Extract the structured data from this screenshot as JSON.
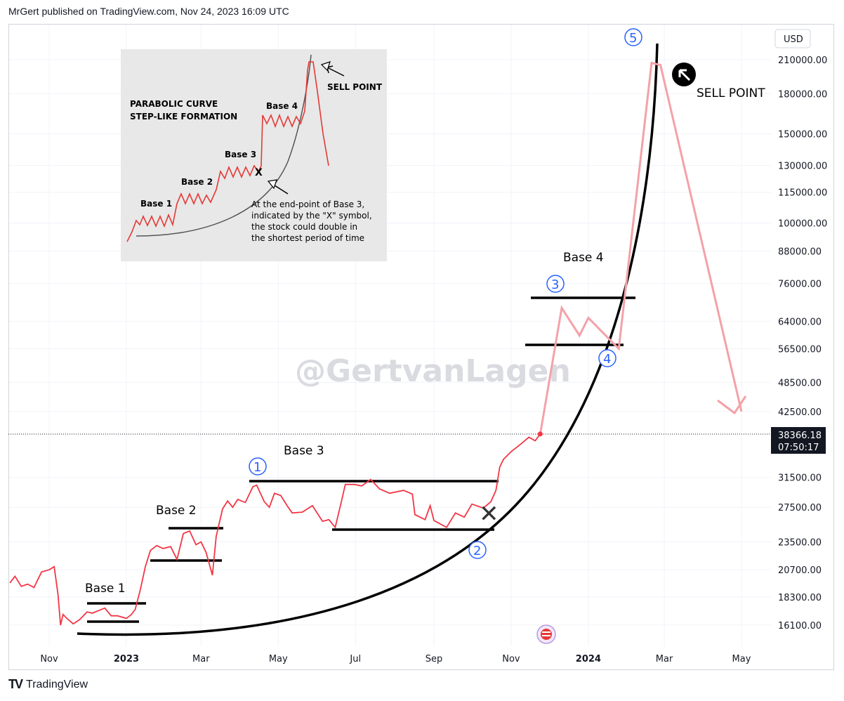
{
  "header": {
    "publisher_line": "MrGert published on TradingView.com, Nov 24, 2023 16:09 UTC"
  },
  "footer": {
    "logo": "TV",
    "brand": "TradingView"
  },
  "watermark": "@GertvanLagen",
  "chart_data": {
    "type": "line",
    "currency": "USD",
    "log_scale": true,
    "y_ticks": [
      "210000.00",
      "180000.00",
      "150000.00",
      "130000.00",
      "115000.00",
      "100000.00",
      "88000.00",
      "76000.00",
      "64000.00",
      "56500.00",
      "48500.00",
      "42500.00",
      "31500.00",
      "27500.00",
      "23500.00",
      "20700.00",
      "18300.00",
      "16100.00"
    ],
    "x_ticks": [
      "Nov",
      "2023",
      "Mar",
      "May",
      "Jul",
      "Sep",
      "Nov",
      "2024",
      "Mar",
      "May"
    ],
    "current_price": {
      "value": "38366.18",
      "countdown": "07:50:17"
    },
    "price_series": {
      "name": "",
      "color": "#f23645",
      "points": [
        [
          "2022-10-01",
          19500
        ],
        [
          "2022-10-05",
          20100
        ],
        [
          "2022-10-10",
          19200
        ],
        [
          "2022-10-15",
          19400
        ],
        [
          "2022-10-20",
          19100
        ],
        [
          "2022-10-26",
          20500
        ],
        [
          "2022-11-01",
          20700
        ],
        [
          "2022-11-05",
          21000
        ],
        [
          "2022-11-08",
          18500
        ],
        [
          "2022-11-10",
          16100
        ],
        [
          "2022-11-12",
          16900
        ],
        [
          "2022-11-15",
          16600
        ],
        [
          "2022-11-20",
          16200
        ],
        [
          "2022-11-25",
          16500
        ],
        [
          "2022-12-01",
          17100
        ],
        [
          "2022-12-05",
          17000
        ],
        [
          "2022-12-10",
          17200
        ],
        [
          "2022-12-15",
          17400
        ],
        [
          "2022-12-20",
          16800
        ],
        [
          "2022-12-25",
          16800
        ],
        [
          "2023-01-01",
          16600
        ],
        [
          "2023-01-05",
          16900
        ],
        [
          "2023-01-08",
          17300
        ],
        [
          "2023-01-12",
          18900
        ],
        [
          "2023-01-16",
          21000
        ],
        [
          "2023-01-20",
          22600
        ],
        [
          "2023-01-25",
          23100
        ],
        [
          "2023-01-30",
          22800
        ],
        [
          "2023-02-05",
          23000
        ],
        [
          "2023-02-10",
          21700
        ],
        [
          "2023-02-15",
          24400
        ],
        [
          "2023-02-20",
          24700
        ],
        [
          "2023-02-25",
          23200
        ],
        [
          "2023-03-01",
          23500
        ],
        [
          "2023-03-05",
          22400
        ],
        [
          "2023-03-10",
          20200
        ],
        [
          "2023-03-13",
          24100
        ],
        [
          "2023-03-18",
          27300
        ],
        [
          "2023-03-22",
          28300
        ],
        [
          "2023-03-26",
          27500
        ],
        [
          "2023-03-30",
          28500
        ],
        [
          "2023-04-05",
          28100
        ],
        [
          "2023-04-11",
          30200
        ],
        [
          "2023-04-14",
          30400
        ],
        [
          "2023-04-20",
          28200
        ],
        [
          "2023-04-24",
          27500
        ],
        [
          "2023-04-28",
          29300
        ],
        [
          "2023-05-03",
          29000
        ],
        [
          "2023-05-08",
          27700
        ],
        [
          "2023-05-12",
          26800
        ],
        [
          "2023-05-20",
          26900
        ],
        [
          "2023-05-28",
          27700
        ],
        [
          "2023-06-05",
          25800
        ],
        [
          "2023-06-10",
          26000
        ],
        [
          "2023-06-15",
          25100
        ],
        [
          "2023-06-20",
          28300
        ],
        [
          "2023-06-23",
          30500
        ],
        [
          "2023-06-30",
          30500
        ],
        [
          "2023-07-06",
          30300
        ],
        [
          "2023-07-13",
          31200
        ],
        [
          "2023-07-20",
          29900
        ],
        [
          "2023-07-28",
          29300
        ],
        [
          "2023-08-08",
          29700
        ],
        [
          "2023-08-15",
          29200
        ],
        [
          "2023-08-17",
          26600
        ],
        [
          "2023-08-25",
          26000
        ],
        [
          "2023-08-29",
          27700
        ],
        [
          "2023-09-01",
          25900
        ],
        [
          "2023-09-11",
          25100
        ],
        [
          "2023-09-18",
          26800
        ],
        [
          "2023-09-25",
          26300
        ],
        [
          "2023-10-01",
          27900
        ],
        [
          "2023-10-10",
          27400
        ],
        [
          "2023-10-16",
          28200
        ],
        [
          "2023-10-20",
          29700
        ],
        [
          "2023-10-23",
          33000
        ],
        [
          "2023-10-26",
          34200
        ],
        [
          "2023-11-01",
          35400
        ],
        [
          "2023-11-09",
          36700
        ],
        [
          "2023-11-15",
          37800
        ],
        [
          "2023-11-20",
          37200
        ],
        [
          "2023-11-24",
          38366
        ]
      ]
    },
    "projection_series": {
      "name": "",
      "color": "#f4a1a8",
      "points": [
        [
          "2023-11-24",
          38366
        ],
        [
          "2023-12-11",
          68000
        ],
        [
          "2023-12-25",
          60000
        ],
        [
          "2024-01-01",
          65000
        ],
        [
          "2024-01-25",
          56500
        ],
        [
          "2024-02-20",
          207000
        ],
        [
          "2024-02-27",
          205000
        ],
        [
          "2024-05-01",
          42500
        ]
      ]
    },
    "parabolic_curve": {
      "color": "#000000"
    },
    "base_lines": [
      {
        "label": "Base 1"
      },
      {
        "label": "Base 2"
      },
      {
        "label": "Base 3"
      },
      {
        "label": "Base 4"
      }
    ],
    "markers": [
      "1",
      "2",
      "3",
      "4",
      "5"
    ],
    "annotations": {
      "sell_point": "SELL POINT",
      "x_mark": "✕"
    },
    "inset": {
      "title_line1": "PARABOLIC CURVE",
      "title_line2": "STEP-LIKE FORMATION",
      "base_labels": [
        "Base 1",
        "Base 2",
        "Base 3",
        "Base 4"
      ],
      "x_label": "X",
      "sell_point": "SELL POINT",
      "note_lines": [
        "At the end-point of Base 3,",
        "indicated by the \"X\" symbol,",
        "the stock could double in",
        "the shortest period of time"
      ]
    }
  }
}
